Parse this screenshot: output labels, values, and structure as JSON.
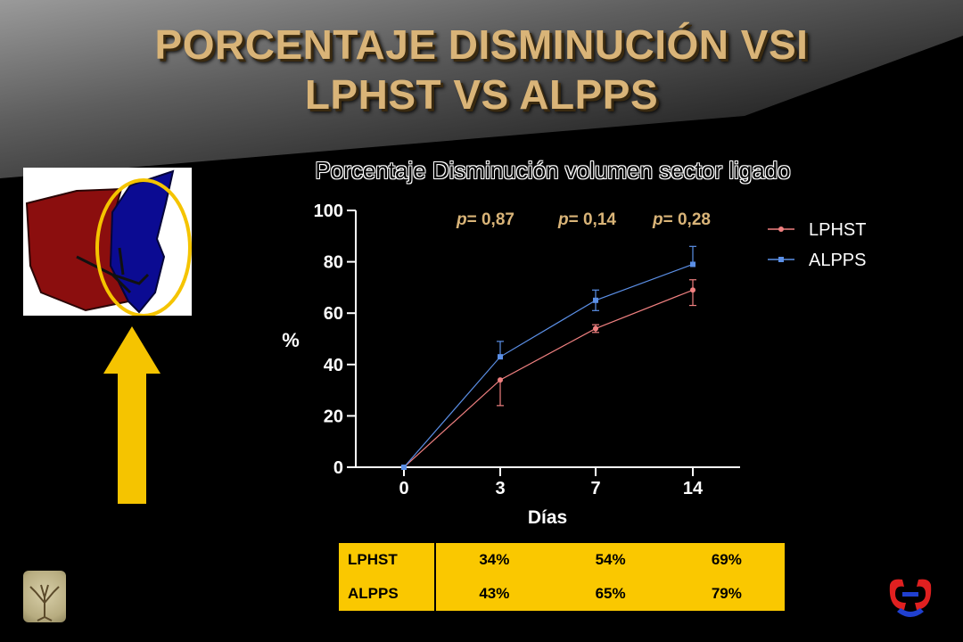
{
  "title": {
    "line1": "PORCENTAJE DISMINUCIÓN VSI",
    "line2": "LPHST VS ALPPS"
  },
  "chart_title": "Porcentaje Disminución volumen sector ligado",
  "colors": {
    "title": "#d9b478",
    "lphst": "#f08080",
    "alpps": "#5b8fe6",
    "table_bg": "#fac800",
    "arrow": "#f5c400",
    "ellipse": "#f5c400"
  },
  "chart_data": {
    "type": "line",
    "title": "Porcentaje Disminución volumen sector ligado",
    "xlabel": "Días",
    "ylabel": "%",
    "x": [
      "0",
      "3",
      "7",
      "14"
    ],
    "ylim": [
      0,
      100
    ],
    "yticks": [
      0,
      20,
      40,
      60,
      80,
      100
    ],
    "series": [
      {
        "name": "LPHST",
        "values": [
          0,
          34,
          54,
          69
        ],
        "error_low": [
          0,
          10,
          1.5,
          6
        ],
        "error_high": [
          0,
          0,
          1.5,
          4
        ],
        "marker": "circle"
      },
      {
        "name": "ALPPS",
        "values": [
          0,
          43,
          65,
          79
        ],
        "error_low": [
          0,
          0,
          4,
          0
        ],
        "error_high": [
          0,
          6,
          4,
          7
        ],
        "marker": "square"
      }
    ],
    "annotations": [
      {
        "italic": "p",
        "text": "= 0,87"
      },
      {
        "italic": "p",
        "text": "= 0,14"
      },
      {
        "italic": "p",
        "text": "= 0,28"
      }
    ],
    "legend": "top-right",
    "grid": false
  },
  "table": {
    "rows": [
      {
        "label": "LPHST",
        "values": [
          "34%",
          "54%",
          "69%"
        ]
      },
      {
        "label": "ALPPS",
        "values": [
          "43%",
          "65%",
          "79%"
        ]
      }
    ]
  }
}
